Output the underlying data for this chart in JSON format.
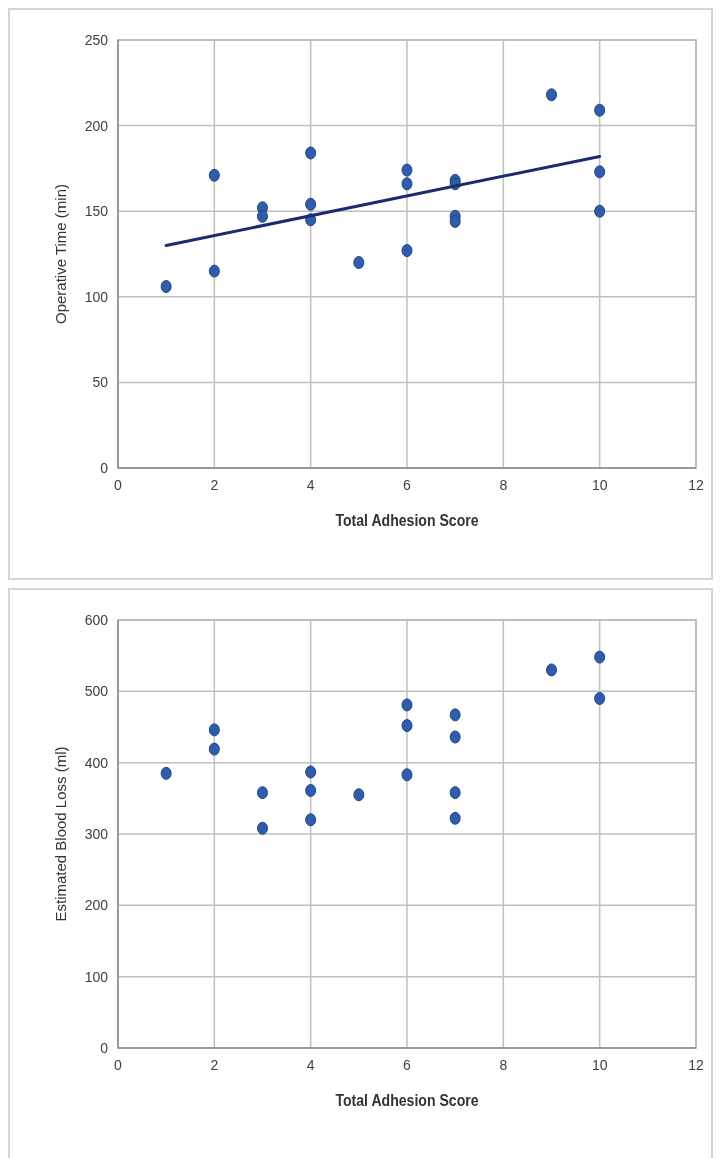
{
  "chart_data": [
    {
      "type": "scatter",
      "xlabel": "Total Adhesion Score",
      "ylabel": "Operative Time (min)",
      "xlim": [
        0,
        12
      ],
      "ylim": [
        0,
        250
      ],
      "xticks": [
        0,
        2,
        4,
        6,
        8,
        10,
        12
      ],
      "yticks": [
        0,
        50,
        100,
        150,
        200,
        250
      ],
      "grid": true,
      "series": [
        {
          "marker": "circle",
          "color": "#2f5cab",
          "x": [
            1,
            2,
            2,
            3,
            3,
            4,
            4,
            4,
            5,
            6,
            6,
            6,
            7,
            7,
            7,
            7,
            9,
            10,
            10,
            10
          ],
          "values": [
            106,
            171,
            115,
            152,
            147,
            184,
            154,
            145,
            120,
            174,
            166,
            127,
            168,
            166,
            147,
            144,
            218,
            209,
            173,
            150
          ]
        },
        {
          "type": "line",
          "marker": "none",
          "color": "#1c2a6e",
          "line_style": "solid",
          "x": [
            1,
            10
          ],
          "values": [
            130,
            182
          ]
        }
      ]
    },
    {
      "type": "scatter",
      "xlabel": "Total Adhesion Score",
      "ylabel": "Estimated Blood Loss (ml)",
      "xlim": [
        0,
        12
      ],
      "ylim": [
        0,
        600
      ],
      "xticks": [
        0,
        2,
        4,
        6,
        8,
        10,
        12
      ],
      "yticks": [
        0,
        100,
        200,
        300,
        400,
        500,
        600
      ],
      "grid": true,
      "series": [
        {
          "marker": "circle",
          "color": "#2f5cab",
          "x": [
            1,
            2,
            2,
            3,
            3,
            4,
            4,
            4,
            5,
            6,
            6,
            6,
            7,
            7,
            7,
            7,
            9,
            10,
            10
          ],
          "values": [
            385,
            446,
            419,
            358,
            308,
            387,
            361,
            320,
            355,
            481,
            452,
            383,
            467,
            436,
            358,
            322,
            530,
            548,
            490
          ]
        }
      ]
    }
  ]
}
